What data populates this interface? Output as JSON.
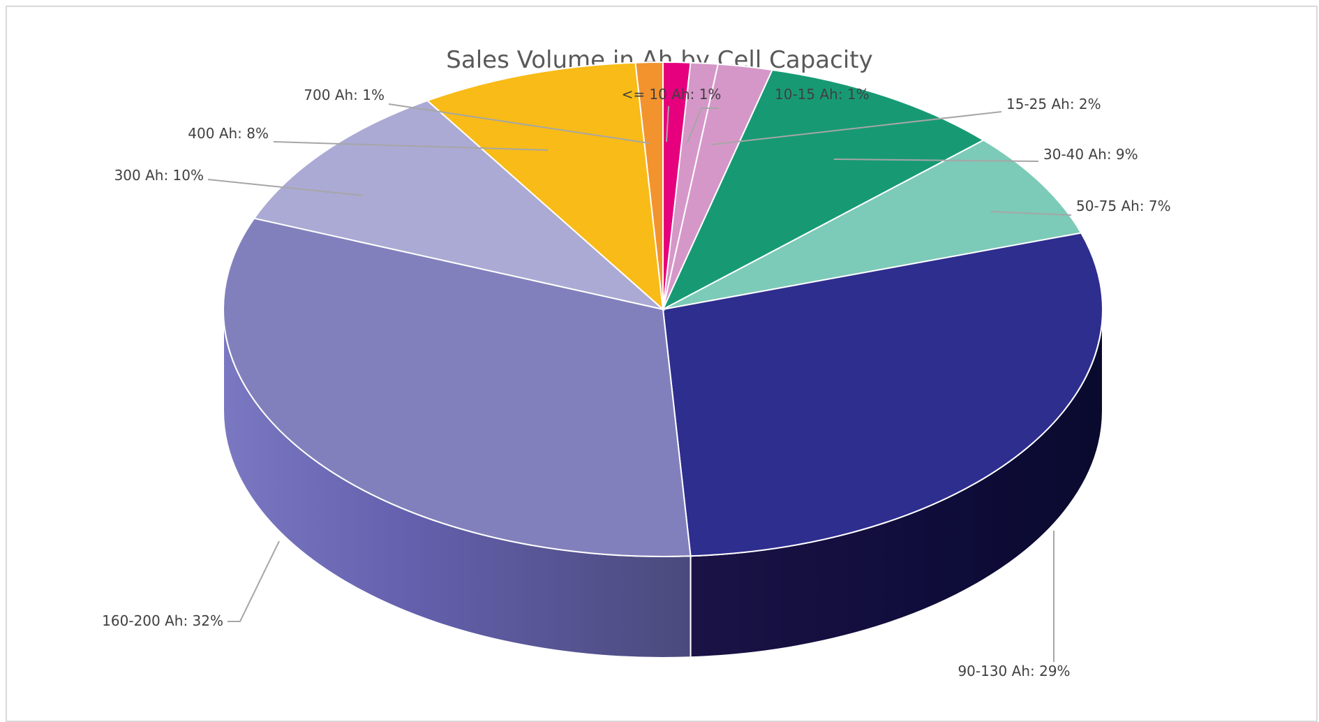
{
  "chart_data": {
    "type": "pie",
    "title": "Sales Volume in Ah by Cell Capacity",
    "legend": "none",
    "data_labels": "category and percentage",
    "categories": [
      "<= 10 Ah",
      "10-15 Ah",
      "15-25 Ah",
      "30-40 Ah",
      "50-75 Ah",
      "90-130 Ah",
      "160-200 Ah",
      "300 Ah",
      "400 Ah",
      "700 Ah"
    ],
    "values": [
      1,
      1,
      2,
      9,
      7,
      29,
      32,
      10,
      8,
      1
    ],
    "unit": "%",
    "labels": [
      "<= 10 Ah: 1%",
      "10-15 Ah: 1%",
      "15-25 Ah: 2%",
      "30-40 Ah: 9%",
      "50-75 Ah: 7%",
      "90-130 Ah: 29%",
      "160-200 Ah: 32%",
      "300 Ah: 10%",
      "400 Ah: 8%",
      "700 Ah: 1%"
    ],
    "colors": [
      "#e6007e",
      "#d597c8",
      "#d597c8",
      "#179a74",
      "#7ccab8",
      "#2e2e8f",
      "#8280bc",
      "#abaad4",
      "#f8bb17",
      "#f2932e"
    ]
  }
}
